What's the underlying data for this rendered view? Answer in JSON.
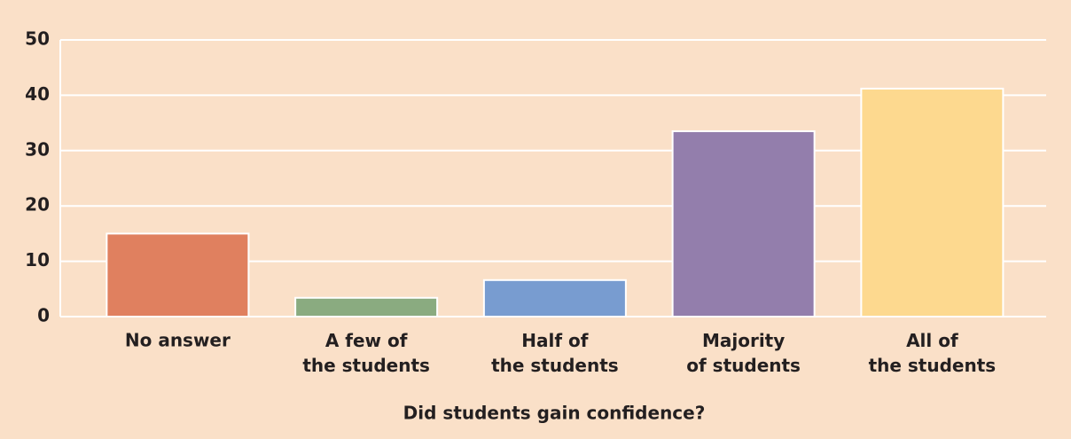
{
  "chart_data": {
    "type": "bar",
    "x_label": "Did students gain confidence?",
    "categories": [
      "No answer",
      "A few of\nthe students",
      "Half of\nthe students",
      "Majority\nof students",
      "All of\nthe students"
    ],
    "values": [
      15,
      3.4,
      6.6,
      33.5,
      41.2
    ],
    "colors": [
      "#e0805f",
      "#8aab80",
      "#789cd0",
      "#937eac",
      "#fdd98f"
    ],
    "background": "#fae0c8",
    "ylim": [
      0,
      50
    ],
    "yticks": [
      0,
      10,
      20,
      30,
      40,
      50
    ],
    "grid": true
  }
}
